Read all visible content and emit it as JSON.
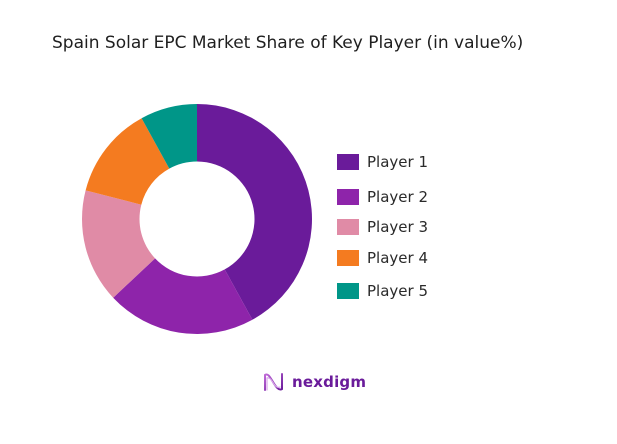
{
  "title": "Spain Solar EPC Market Share of Key Player (in value%)",
  "brand": {
    "name": "nexdigm",
    "icon": "nexdigm-wave-logo-icon",
    "color": "#6A1B9A"
  },
  "chart_data": {
    "type": "pie",
    "variant": "donut",
    "title": "Spain Solar EPC Market Share of Key Player (in value%)",
    "categories": [
      "Player 1",
      "Player 2",
      "Player 3",
      "Player 4",
      "Player 5"
    ],
    "values": [
      42,
      21,
      16,
      13,
      8
    ],
    "colors": [
      "#6A1B9A",
      "#8E24AA",
      "#E08BA6",
      "#F47B20",
      "#009688"
    ],
    "start_angle_deg": 0,
    "direction": "clockwise",
    "inner_radius_ratio": 0.5,
    "legend_position": "right",
    "data_labels": false
  },
  "legend": {
    "items": [
      {
        "label": "Player 1",
        "color": "#6A1B9A"
      },
      {
        "label": "Player 2",
        "color": "#8E24AA"
      },
      {
        "label": "Player 3",
        "color": "#E08BA6"
      },
      {
        "label": "Player 4",
        "color": "#F47B20"
      },
      {
        "label": "Player 5",
        "color": "#009688"
      }
    ]
  }
}
